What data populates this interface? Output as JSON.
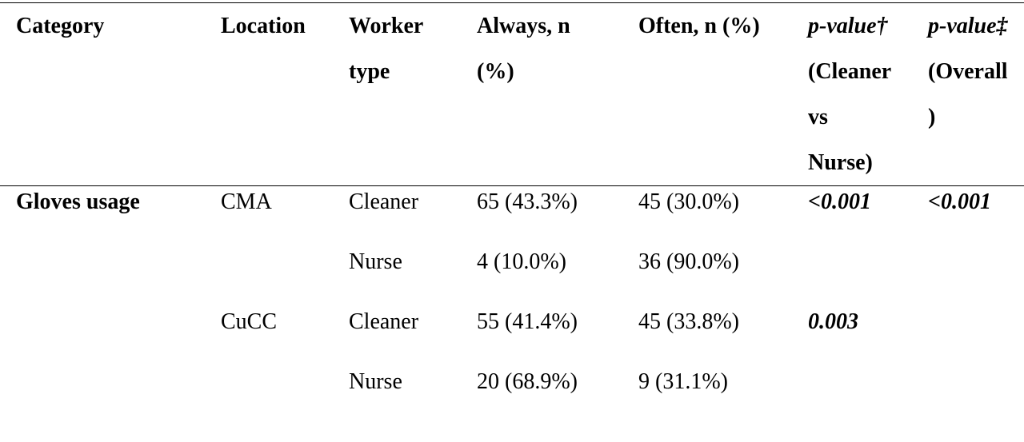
{
  "table": {
    "header": [
      "Category",
      "Location",
      "Worker type",
      "Always, n (%)",
      "Often, n (%)",
      {
        "italic": "p-value†",
        "bold": "(Cleaner vs Nurse)"
      },
      {
        "italic": "p-value‡",
        "bold": "(Overall)"
      }
    ],
    "rows": [
      [
        "Gloves usage",
        "CMA",
        "Cleaner",
        "65 (43.3%)",
        "45 (30.0%)",
        "<0.001",
        "<0.001"
      ],
      [
        null,
        null,
        "Nurse",
        "4 (10.0%)",
        "36 (90.0%)",
        null,
        null
      ],
      [
        null,
        "CuCC",
        "Cleaner",
        "55 (41.4%)",
        "45 (33.8%)",
        "0.003",
        null
      ],
      [
        null,
        null,
        "Nurse",
        "20 (68.9%)",
        "9 (31.1%)",
        null,
        null
      ]
    ]
  }
}
